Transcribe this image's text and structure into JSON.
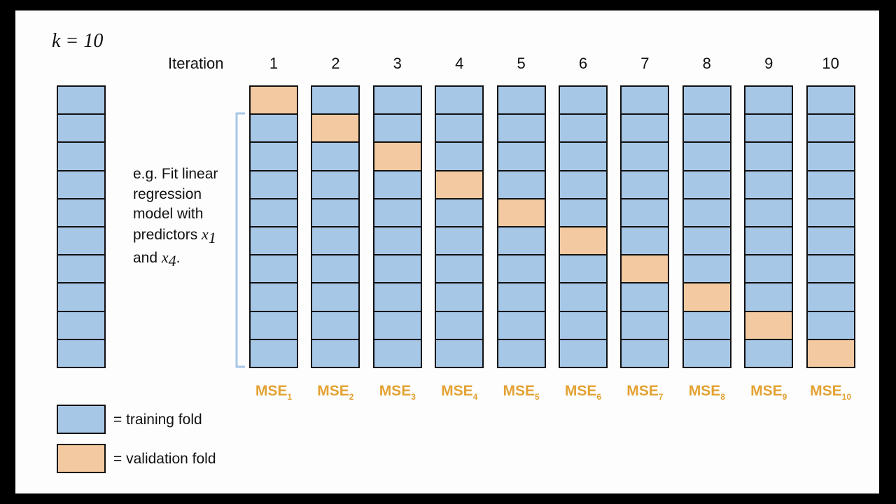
{
  "k_label": "k = 10",
  "iteration_label": "Iteration",
  "iterations": [
    "1",
    "2",
    "3",
    "4",
    "5",
    "6",
    "7",
    "8",
    "9",
    "10"
  ],
  "num_folds": 10,
  "mse_prefix": "MSE",
  "mse_subscripts": [
    "1",
    "2",
    "3",
    "4",
    "5",
    "6",
    "7",
    "8",
    "9",
    "10"
  ],
  "annotation": {
    "line1": "e.g. Fit linear",
    "line2": "regression",
    "line3": "model with",
    "line4_text": "predictors ",
    "line4_var": "x",
    "line4_sub": "1",
    "line5_text": "and ",
    "line5_var": "x",
    "line5_sub": "4",
    "line5_end": "."
  },
  "legend": {
    "training": "= training fold",
    "validation": "= validation fold"
  },
  "colors": {
    "training": "#a7c7e7",
    "validation": "#f2c9a0",
    "mse": "#e3a233",
    "bracket": "#a7c7e7",
    "border": "#111111"
  }
}
